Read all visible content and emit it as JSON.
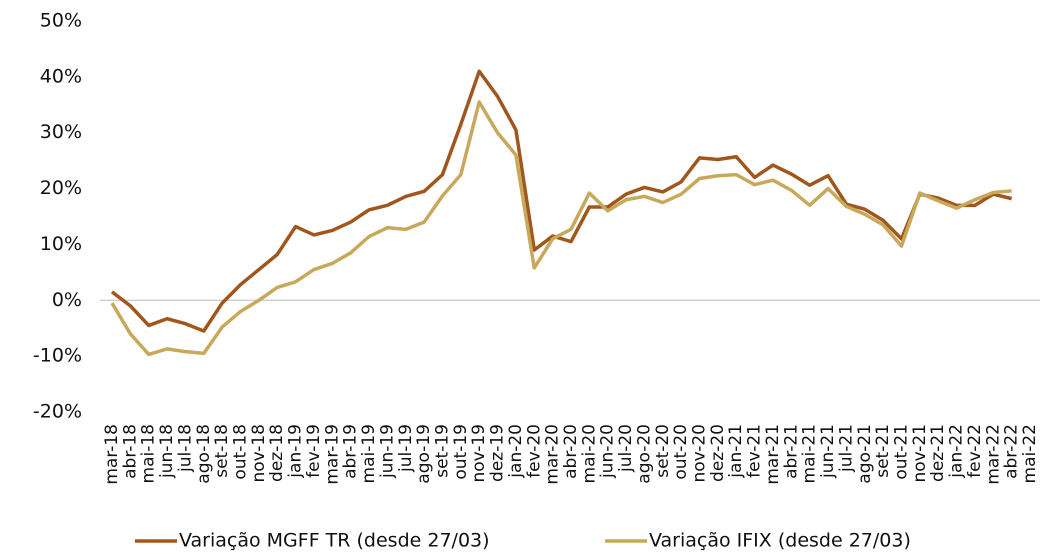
{
  "chart_data": {
    "type": "line",
    "categories": [
      "mar-18",
      "abr-18",
      "mai-18",
      "jun-18",
      "jul-18",
      "ago-18",
      "set-18",
      "out-18",
      "nov-18",
      "dez-18",
      "jan-19",
      "fev-19",
      "mar-19",
      "abr-19",
      "mai-19",
      "jun-19",
      "jul-19",
      "ago-19",
      "set-19",
      "out-19",
      "nov-19",
      "dez-19",
      "jan-20",
      "fev-20",
      "mar-20",
      "abr-20",
      "mai-20",
      "jun-20",
      "jul-20",
      "ago-20",
      "set-20",
      "out-20",
      "nov-20",
      "dez-20",
      "jan-21",
      "fev-21",
      "mar-21",
      "abr-21",
      "mai-21",
      "jun-21",
      "jul-21",
      "ago-21",
      "set-21",
      "out-21",
      "nov-21",
      "dez-21",
      "jan-22",
      "fev-22",
      "mar-22",
      "abr-22",
      "mai-22"
    ],
    "series": [
      {
        "name": "Variação MGFF TR (desde 27/03)",
        "color": "#a0561c",
        "values": [
          1.5,
          -1,
          -4.5,
          -3.3,
          -4.2,
          -5.5,
          -0.5,
          2.8,
          5.5,
          8.2,
          13.2,
          11.7,
          12.5,
          14,
          16.2,
          17,
          18.6,
          19.5,
          22.5,
          31.5,
          41,
          36.5,
          30.5,
          9,
          11.5,
          10.5,
          16.7,
          16.7,
          19,
          20.2,
          19.4,
          21.2,
          25.5,
          25.2,
          25.7,
          22,
          24.2,
          22.6,
          20.6,
          22.3,
          17.2,
          16.3,
          14.3,
          11,
          19,
          18.3,
          17,
          17,
          19,
          18.2,
          null
        ]
      },
      {
        "name": "Variação IFIX (desde 27/03)",
        "color": "#c8a85a",
        "values": [
          -0.5,
          -6,
          -9.7,
          -8.7,
          -9.2,
          -9.5,
          -4.8,
          -2,
          0,
          2.3,
          3.3,
          5.5,
          6.6,
          8.5,
          11.4,
          13,
          12.7,
          14,
          18.7,
          22.5,
          35.5,
          30,
          26,
          5.8,
          11,
          12.7,
          19.2,
          16,
          18,
          18.6,
          17.5,
          19,
          21.8,
          22.3,
          22.5,
          20.7,
          21.5,
          19.7,
          17,
          20,
          16.8,
          15.4,
          13.5,
          9.7,
          19.2,
          17.8,
          16.5,
          18,
          19.3,
          19.6,
          null
        ]
      }
    ],
    "ylim": [
      -20,
      50
    ],
    "yticks": [
      {
        "value": -20,
        "label": "-20%"
      },
      {
        "value": -10,
        "label": "-10%"
      },
      {
        "value": 0,
        "label": "0%"
      },
      {
        "value": 10,
        "label": "10%"
      },
      {
        "value": 20,
        "label": "20%"
      },
      {
        "value": 30,
        "label": "30%"
      },
      {
        "value": 40,
        "label": "40%"
      },
      {
        "value": 50,
        "label": "50%"
      }
    ],
    "legend": "bottom"
  }
}
